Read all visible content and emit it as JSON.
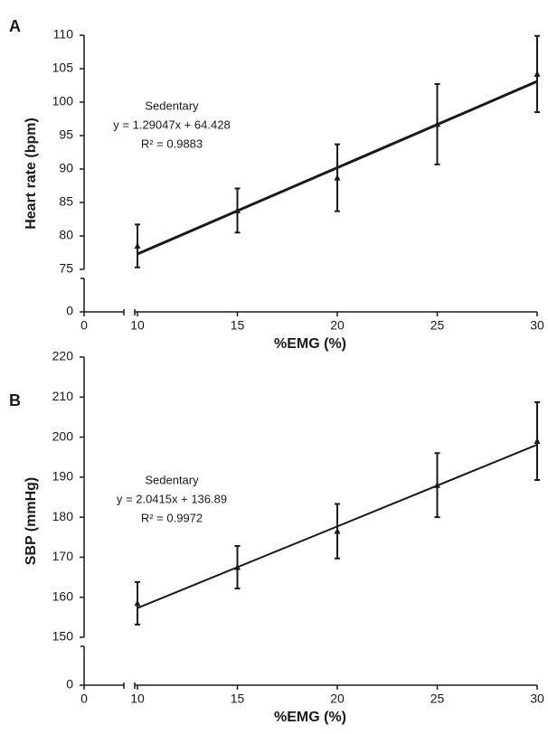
{
  "chart_data": [
    {
      "type": "line",
      "panel_label": "A",
      "xlabel": "%EMG (%)",
      "ylabel": "Heart rate (bpm)",
      "annotation": [
        "Sedentary",
        "y = 1.29047x + 64.428",
        "R² = 0.9883"
      ],
      "xlim": [
        0,
        30
      ],
      "xticks": [
        0,
        10,
        15,
        20,
        25,
        30
      ],
      "xbreak": [
        0,
        10
      ],
      "ylim": [
        0,
        110
      ],
      "yticks": [
        0,
        75,
        80,
        85,
        90,
        95,
        100,
        105,
        110
      ],
      "ybreak": [
        0,
        75
      ],
      "series": [
        {
          "color": "#1a1a1a",
          "x": [
            10,
            15,
            20,
            25,
            30
          ],
          "values": [
            78.5,
            83.8,
            88.7,
            96.7,
            104.2
          ],
          "errors": [
            3.2,
            3.3,
            5.0,
            6.0,
            5.7
          ]
        }
      ],
      "trendline": {
        "x": [
          10,
          30
        ],
        "values": [
          77.3,
          103.1
        ]
      }
    },
    {
      "type": "line",
      "panel_label": "B",
      "xlabel": "%EMG (%)",
      "ylabel": "SBP (mmHg)",
      "annotation": [
        "Sedentary",
        "y = 2.0415x + 136.89",
        "R² = 0.9972"
      ],
      "xlim": [
        0,
        30
      ],
      "xticks": [
        0,
        10,
        15,
        20,
        25,
        30
      ],
      "xbreak": [
        0,
        10
      ],
      "ylim": [
        0,
        220
      ],
      "yticks": [
        0,
        150,
        160,
        170,
        180,
        190,
        200,
        210,
        220
      ],
      "ybreak": [
        0,
        150
      ],
      "series": [
        {
          "color": "#1a1a1a",
          "x": [
            10,
            15,
            20,
            25,
            30
          ],
          "values": [
            158.5,
            167.5,
            176.5,
            188,
            199
          ],
          "errors": [
            5.3,
            5.3,
            6.8,
            8,
            9.7
          ]
        }
      ],
      "trendline": {
        "x": [
          10,
          30
        ],
        "values": [
          157.3,
          198.1
        ]
      }
    }
  ]
}
